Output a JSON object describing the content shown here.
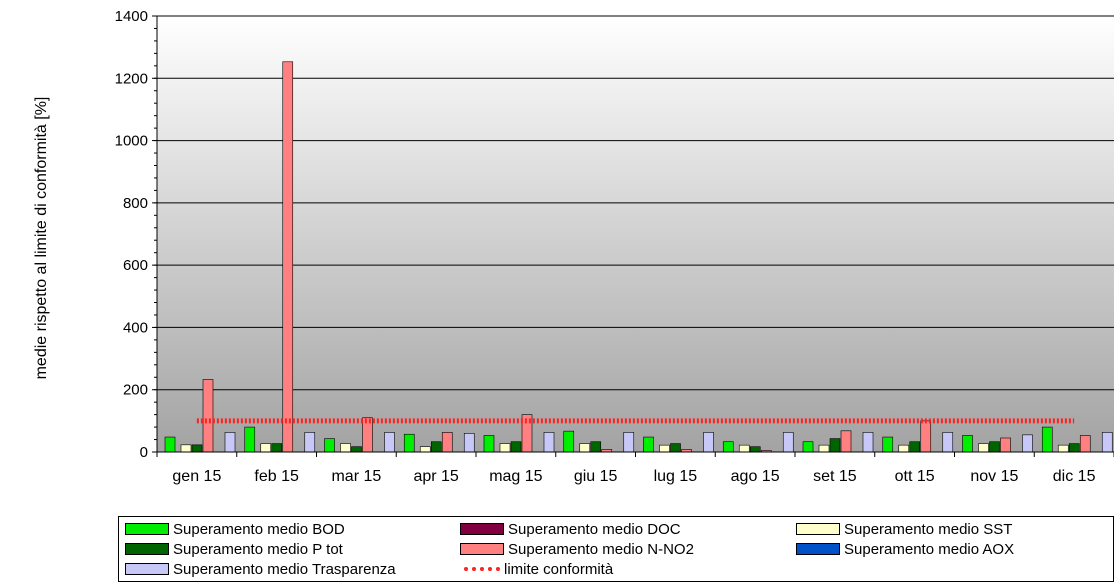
{
  "chart_data": {
    "type": "bar",
    "ylabel": "medie rispetto al limite di conformità [%]",
    "xlabel": "",
    "title": "",
    "ylim": [
      0,
      1400
    ],
    "yticks": [
      0,
      200,
      400,
      600,
      800,
      1000,
      1200,
      1400
    ],
    "categories": [
      "gen 15",
      "feb 15",
      "mar 15",
      "apr 15",
      "mag 15",
      "giu 15",
      "lug 15",
      "ago 15",
      "set 15",
      "ott 15",
      "nov 15",
      "dic 15"
    ],
    "series": [
      {
        "name": "Superamento medio BOD",
        "color": "#00ee00",
        "values": [
          48,
          80,
          43,
          57,
          53,
          67,
          48,
          33,
          33,
          48,
          53,
          80
        ]
      },
      {
        "name": "Superamento medio SST",
        "color": "#ffffcc",
        "values": [
          23,
          27,
          27,
          17,
          27,
          27,
          22,
          22,
          22,
          22,
          27,
          22
        ]
      },
      {
        "name": "Superamento medio P tot",
        "color": "#006400",
        "values": [
          23,
          27,
          17,
          33,
          33,
          33,
          27,
          17,
          43,
          33,
          33,
          27
        ]
      },
      {
        "name": "Superamento medio N-NO2",
        "color": "#ff8080",
        "values": [
          233,
          1253,
          110,
          63,
          120,
          8,
          8,
          5,
          68,
          100,
          45,
          53
        ]
      },
      {
        "name": "Superamento medio Trasparenza",
        "color": "#c8c8f8",
        "values": [
          63,
          63,
          63,
          60,
          63,
          63,
          63,
          63,
          63,
          63,
          55,
          63
        ]
      }
    ],
    "legend_only_series": [
      {
        "name": "Superamento medio DOC",
        "color": "#800040"
      },
      {
        "name": "Superamento medio AOX",
        "color": "#0050c8"
      }
    ],
    "limit_line": {
      "name": "limite conformità",
      "value": 100,
      "color": "#ff2020"
    },
    "legend": [
      {
        "label": "Superamento medio BOD",
        "color": "#00ee00",
        "kind": "bar"
      },
      {
        "label": "Superamento medio DOC",
        "color": "#800040",
        "kind": "bar"
      },
      {
        "label": "Superamento medio SST",
        "color": "#ffffcc",
        "kind": "bar"
      },
      {
        "label": "Superamento medio P tot",
        "color": "#006400",
        "kind": "bar"
      },
      {
        "label": "Superamento medio N-NO2",
        "color": "#ff8080",
        "kind": "bar"
      },
      {
        "label": "Superamento medio AOX",
        "color": "#0050c8",
        "kind": "bar"
      },
      {
        "label": "Superamento medio Trasparenza",
        "color": "#c8c8f8",
        "kind": "bar"
      },
      {
        "label": "limite conformità",
        "color": "#ff2020",
        "kind": "line"
      }
    ],
    "grid": true,
    "legend_position": "bottom"
  }
}
